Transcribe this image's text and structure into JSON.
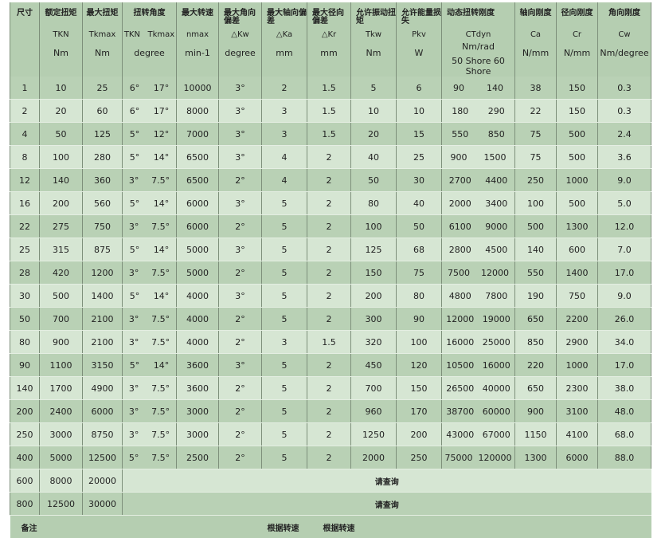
{
  "headers": [
    {
      "title": "尺寸",
      "sym": "",
      "unit": ""
    },
    {
      "title": "额定扭矩",
      "sym": "TKN",
      "unit": "Nm"
    },
    {
      "title": "最大扭矩",
      "sym": "Tkmax",
      "unit": "Nm"
    },
    {
      "title": "扭转角度",
      "sym": "TKN   Tkmax",
      "unit": "degree"
    },
    {
      "title": "最大转速",
      "sym": "nmax",
      "unit": "min-1"
    },
    {
      "title": "最大角向偏差",
      "sym": "△Kw",
      "unit": "degree"
    },
    {
      "title": "最大轴向偏差",
      "sym": "△Ka",
      "unit": "mm"
    },
    {
      "title": "最大径向偏差",
      "sym": "△Kr",
      "unit": "mm"
    },
    {
      "title": "允许振动扭矩",
      "sym": "Tkw",
      "unit": "Nm"
    },
    {
      "title": "允许能量损失",
      "sym": "Pkv",
      "unit": "W"
    },
    {
      "title": "动态扭转刚度",
      "sym": "CTdyn",
      "unit2": "Nm/rad",
      "unit": "50 Shore 60 Shore"
    },
    {
      "title": "轴向刚度",
      "sym": "Ca",
      "unit": "N/mm"
    },
    {
      "title": "径向刚度",
      "sym": "Cr",
      "unit": "N/mm"
    },
    {
      "title": "角向刚度",
      "sym": "Cw",
      "unit": "Nm/degree"
    }
  ],
  "rows": [
    [
      "1",
      "10",
      "25",
      "6°",
      "17°",
      "10000",
      "3°",
      "2",
      "1.5",
      "5",
      "6",
      "90",
      "140",
      "38",
      "150",
      "0.3"
    ],
    [
      "2",
      "20",
      "60",
      "6°",
      "17°",
      "8000",
      "3°",
      "3",
      "1.5",
      "10",
      "10",
      "180",
      "290",
      "22",
      "150",
      "0.3"
    ],
    [
      "4",
      "50",
      "125",
      "5°",
      "12°",
      "7000",
      "3°",
      "3",
      "1.5",
      "20",
      "15",
      "550",
      "850",
      "75",
      "500",
      "2.4"
    ],
    [
      "8",
      "100",
      "280",
      "5°",
      "14°",
      "6500",
      "3°",
      "4",
      "2",
      "40",
      "25",
      "900",
      "1500",
      "75",
      "500",
      "3.6"
    ],
    [
      "12",
      "140",
      "360",
      "3°",
      "7.5°",
      "6500",
      "2°",
      "4",
      "2",
      "50",
      "30",
      "2700",
      "4400",
      "250",
      "1000",
      "9.0"
    ],
    [
      "16",
      "200",
      "560",
      "5°",
      "14°",
      "6000",
      "3°",
      "5",
      "2",
      "80",
      "40",
      "2000",
      "3400",
      "100",
      "500",
      "5.0"
    ],
    [
      "22",
      "275",
      "750",
      "3°",
      "7.5°",
      "6000",
      "2°",
      "5",
      "2",
      "100",
      "50",
      "6100",
      "9000",
      "500",
      "1300",
      "12.0"
    ],
    [
      "25",
      "315",
      "875",
      "5°",
      "14°",
      "5000",
      "3°",
      "5",
      "2",
      "125",
      "68",
      "2800",
      "4500",
      "140",
      "600",
      "7.0"
    ],
    [
      "28",
      "420",
      "1200",
      "3°",
      "7.5°",
      "5000",
      "2°",
      "5",
      "2",
      "150",
      "75",
      "7500",
      "12000",
      "550",
      "1400",
      "17.0"
    ],
    [
      "30",
      "500",
      "1400",
      "5°",
      "14°",
      "4000",
      "3°",
      "5",
      "2",
      "200",
      "80",
      "4800",
      "7800",
      "190",
      "750",
      "9.0"
    ],
    [
      "50",
      "700",
      "2100",
      "3°",
      "7.5°",
      "4000",
      "2°",
      "5",
      "2",
      "300",
      "90",
      "12000",
      "19000",
      "650",
      "2200",
      "26.0"
    ],
    [
      "80",
      "900",
      "2100",
      "3°",
      "7.5°",
      "4000",
      "2°",
      "3",
      "1.5",
      "320",
      "100",
      "16000",
      "25000",
      "850",
      "2900",
      "34.0"
    ],
    [
      "90",
      "1100",
      "3150",
      "5°",
      "14°",
      "3600",
      "3°",
      "5",
      "2",
      "450",
      "120",
      "10500",
      "16000",
      "220",
      "1000",
      "17.0"
    ],
    [
      "140",
      "1700",
      "4900",
      "3°",
      "7.5°",
      "3600",
      "2°",
      "5",
      "2",
      "700",
      "150",
      "26500",
      "40000",
      "650",
      "2300",
      "38.0"
    ],
    [
      "200",
      "2400",
      "6000",
      "3°",
      "7.5°",
      "3000",
      "2°",
      "5",
      "2",
      "960",
      "170",
      "38700",
      "60000",
      "900",
      "3100",
      "48.0"
    ],
    [
      "250",
      "3000",
      "8750",
      "3°",
      "7.5°",
      "3000",
      "2°",
      "5",
      "2",
      "1250",
      "200",
      "43000",
      "67000",
      "1150",
      "4100",
      "68.0"
    ],
    [
      "400",
      "5000",
      "12500",
      "5°",
      "7.5°",
      "2500",
      "2°",
      "5",
      "2",
      "2000",
      "250",
      "75000",
      "120000",
      "1300",
      "6000",
      "88.0"
    ]
  ],
  "inquiry_rows": [
    [
      "600",
      "8000",
      "20000",
      "请查询"
    ],
    [
      "800",
      "12500",
      "30000",
      "请查询"
    ]
  ],
  "note": {
    "label": "备注",
    "a": "根据转速",
    "b": "根据转速"
  }
}
